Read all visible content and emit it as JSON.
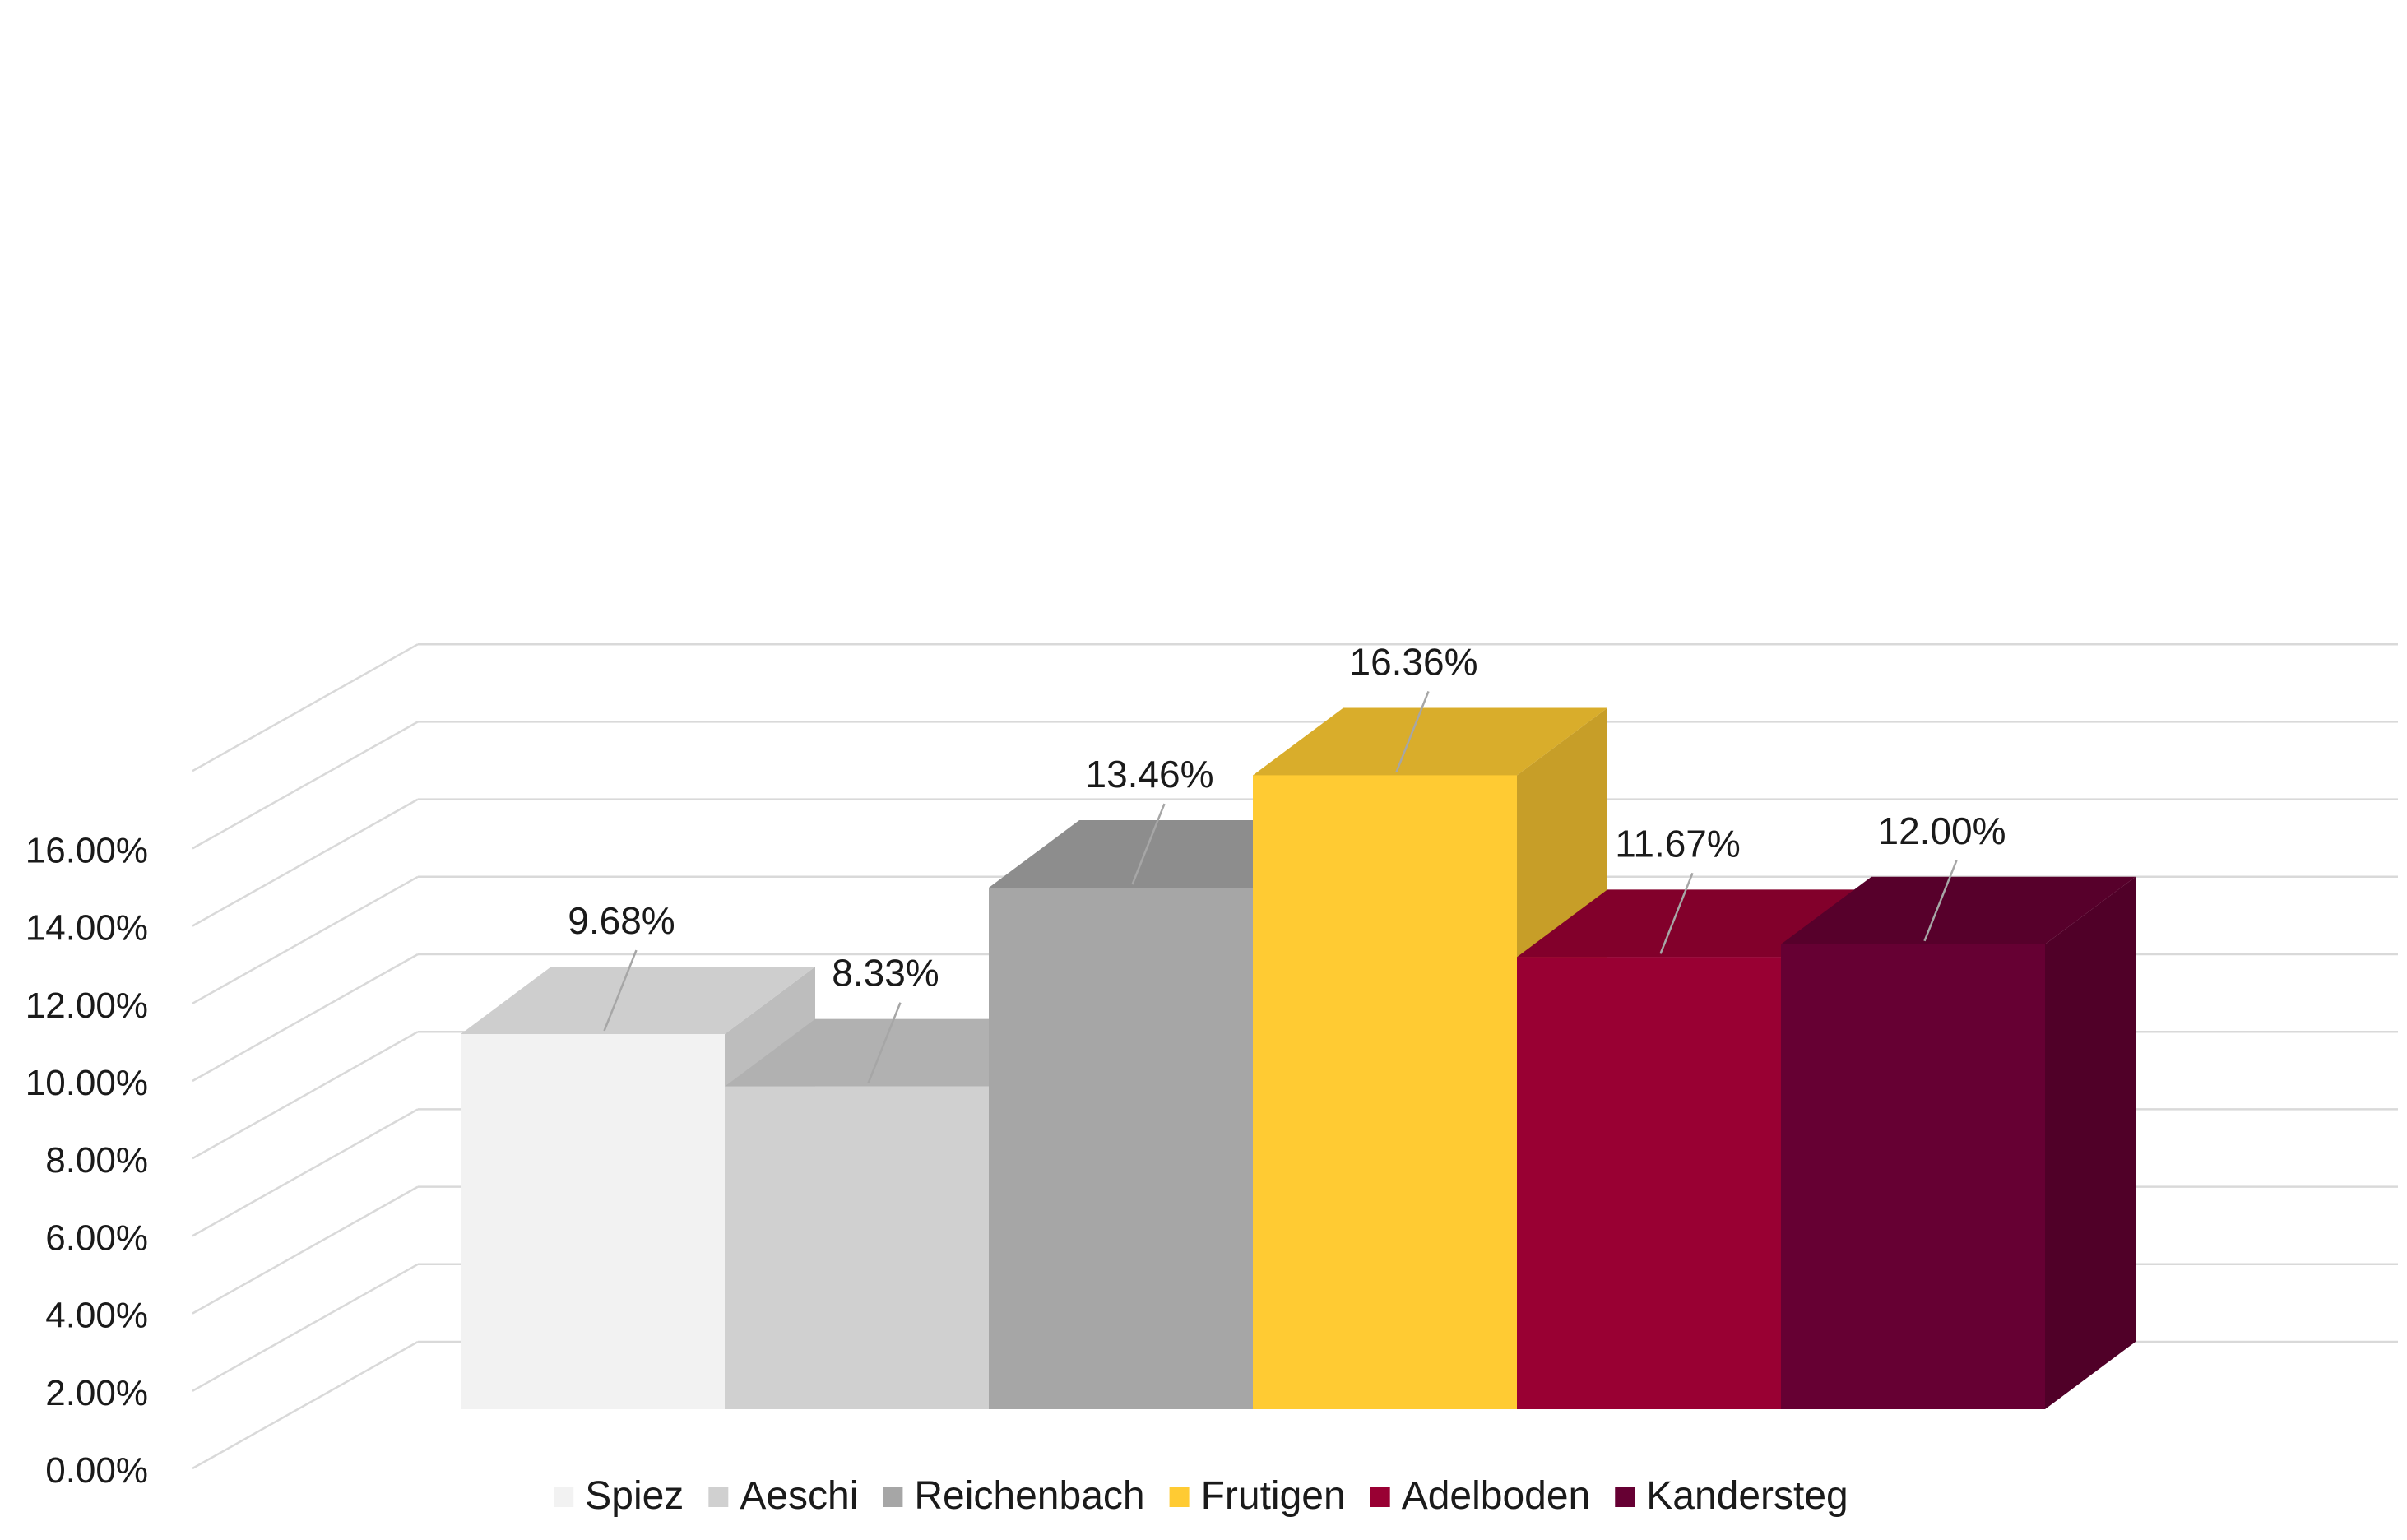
{
  "chart_data": {
    "type": "bar",
    "style": "3d-column",
    "categories": [
      "Spiez",
      "Aeschi",
      "Reichenbach",
      "Frutigen",
      "Adelboden",
      "Kandersteg"
    ],
    "values": [
      9.68,
      8.33,
      13.46,
      16.36,
      11.67,
      12.0
    ],
    "value_labels": [
      "9.68%",
      "8.33%",
      "13.46%",
      "16.36%",
      "11.67%",
      "12.00%"
    ],
    "colors": [
      "#f2f2f2",
      "#d0d0d0",
      "#a6a6a6",
      "#ffcb33",
      "#990033",
      "#660033"
    ],
    "ylim": [
      0,
      18
    ],
    "yticks": [
      0,
      2,
      4,
      6,
      8,
      10,
      12,
      14,
      16
    ],
    "ytick_labels": [
      "0.00%",
      "2.00%",
      "4.00%",
      "6.00%",
      "8.00%",
      "10.00%",
      "12.00%",
      "14.00%",
      "16.00%"
    ],
    "grid": true,
    "legend": {
      "position": "bottom",
      "entries": [
        "Spiez",
        "Aeschi",
        "Reichenbach",
        "Frutigen",
        "Adelboden",
        "Kandersteg"
      ]
    },
    "title": "",
    "xlabel": "",
    "ylabel": ""
  }
}
